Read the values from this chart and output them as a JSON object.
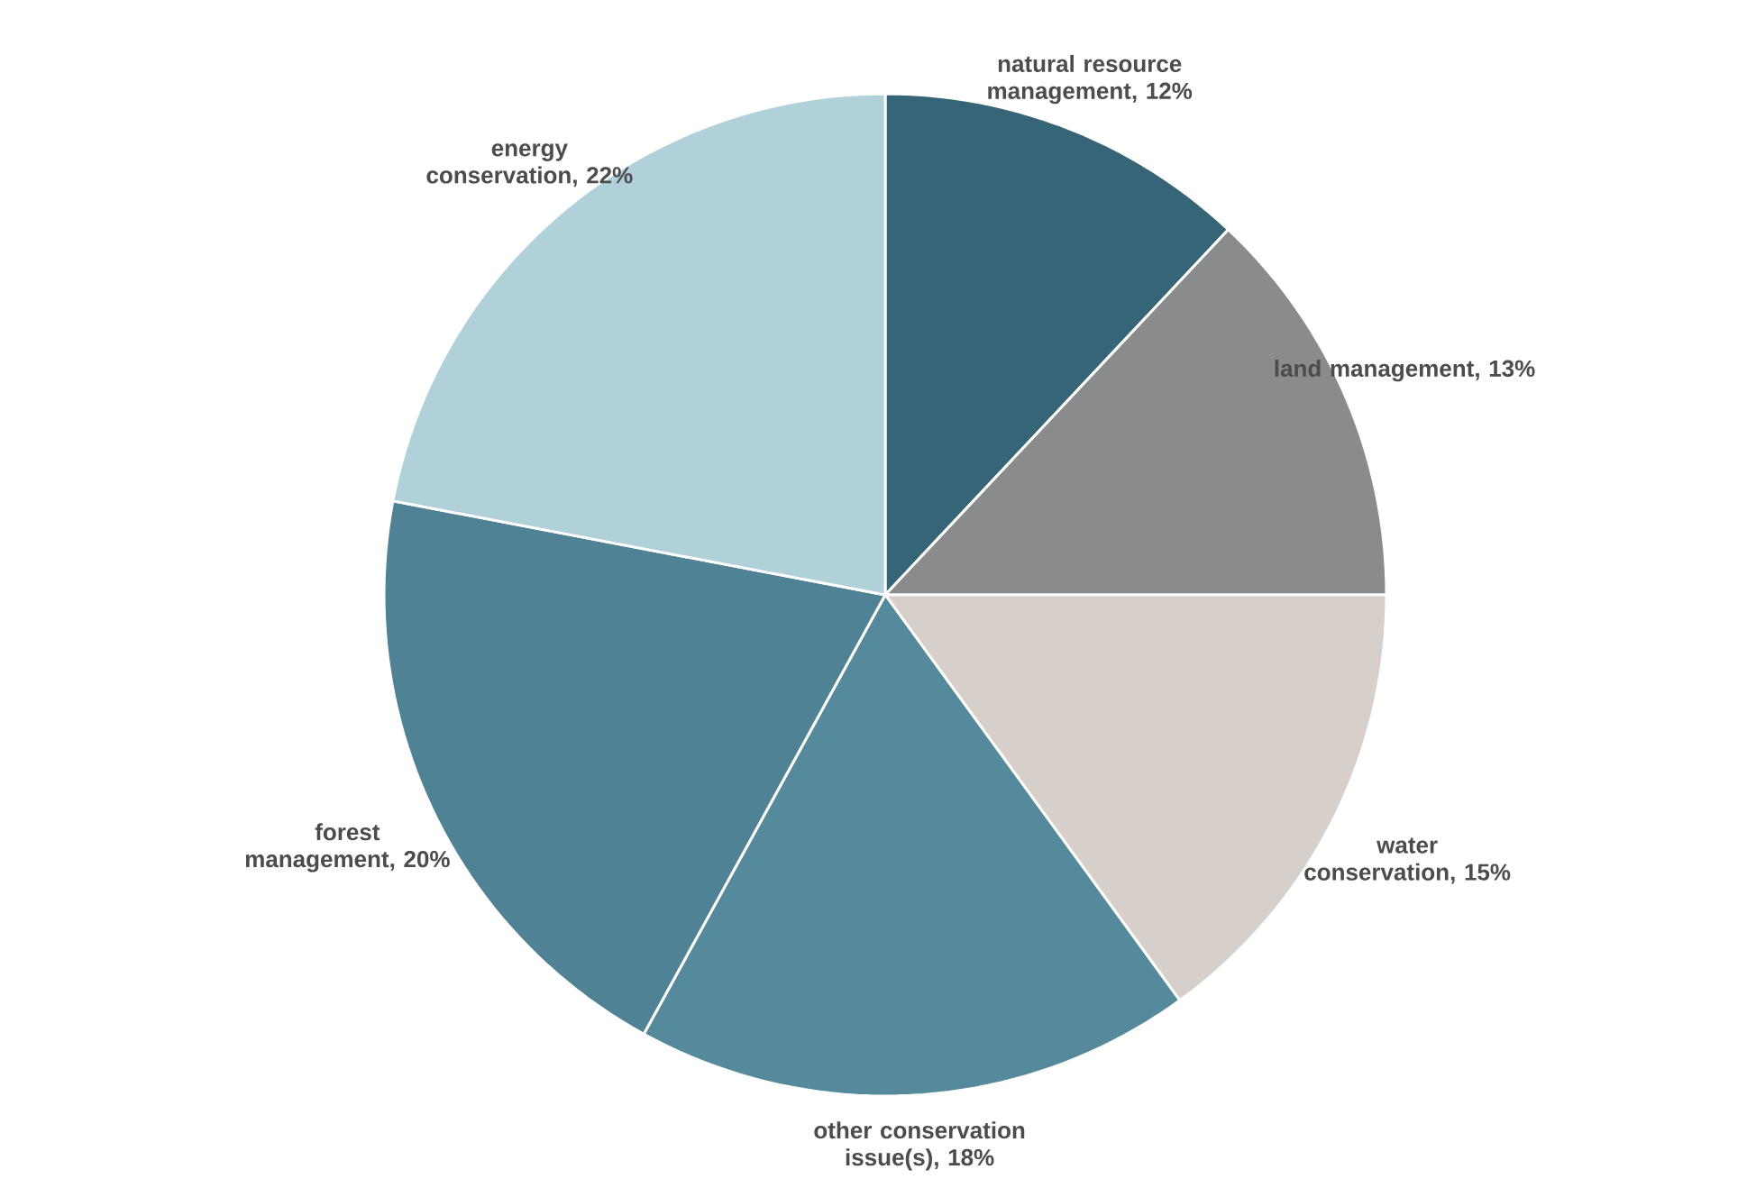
{
  "chart_data": {
    "type": "pie",
    "categories": [
      "natural resource management",
      "land management",
      "water conservation",
      "other conservation issue(s)",
      "forest management",
      "energy conservation"
    ],
    "values": [
      12,
      13,
      15,
      18,
      20,
      22
    ],
    "value_labels": [
      ", 12%",
      ", 13%",
      ", 15%",
      ", 18%",
      ", 20%",
      ", 22%"
    ],
    "colors": [
      "#356577",
      "#8a8b8d",
      "#d6cfca",
      "#548a9b",
      "#4f8295",
      "#b0d0da"
    ]
  }
}
